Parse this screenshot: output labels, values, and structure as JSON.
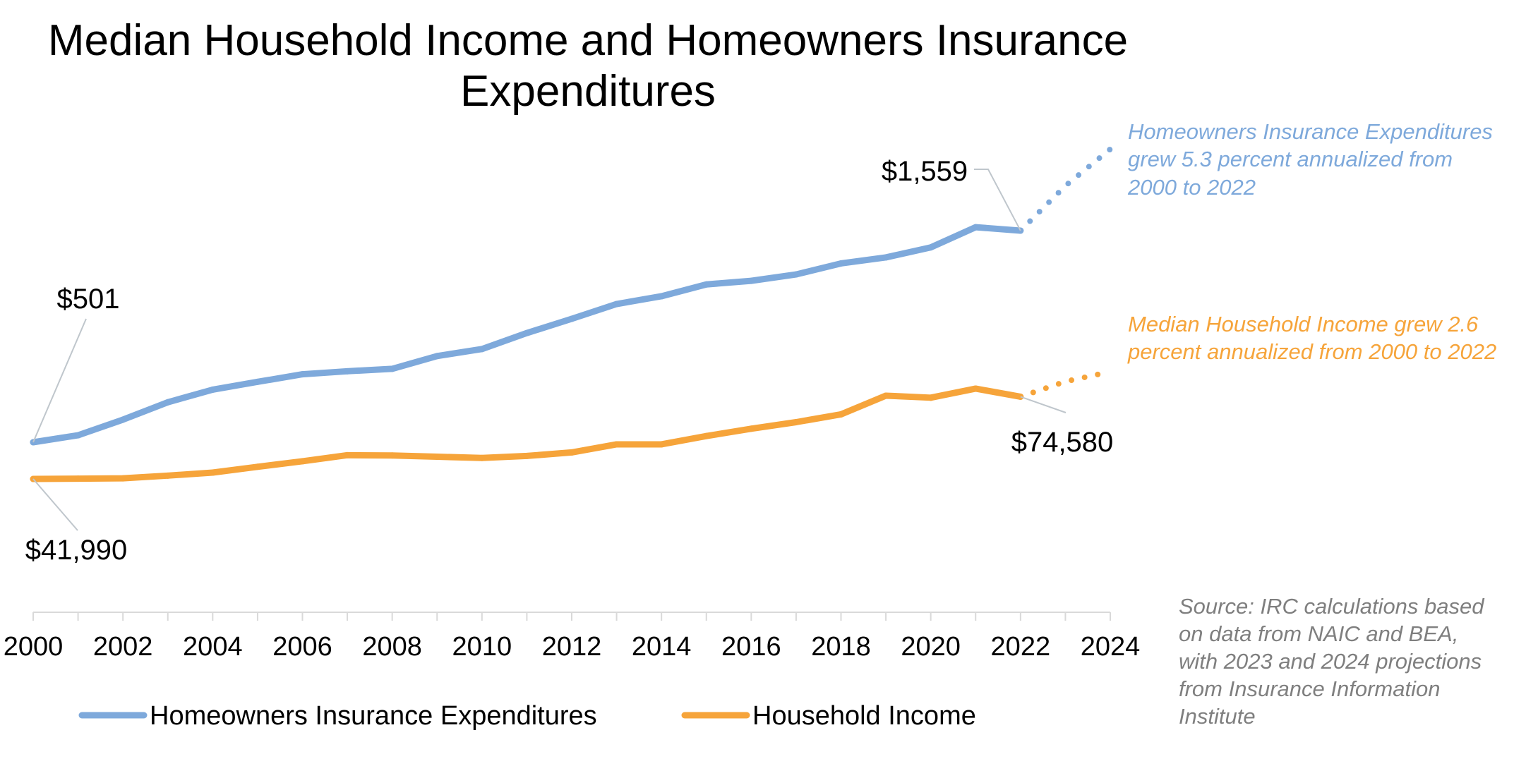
{
  "chart_data": {
    "type": "line",
    "title": [
      "Median Household Income and Homeowners Insurance",
      "Expenditures"
    ],
    "x": [
      2000,
      2001,
      2002,
      2003,
      2004,
      2005,
      2006,
      2007,
      2008,
      2009,
      2010,
      2011,
      2012,
      2013,
      2014,
      2015,
      2016,
      2017,
      2018,
      2019,
      2020,
      2021,
      2022,
      2023,
      2024
    ],
    "xticks": [
      "2000",
      "2002",
      "2004",
      "2006",
      "2008",
      "2010",
      "2012",
      "2014",
      "2016",
      "2018",
      "2020",
      "2022",
      "2024"
    ],
    "xlabel": "",
    "ylabel": "",
    "series": [
      {
        "name": "Homeowners Insurance Expenditures",
        "color": "#7EA9DB",
        "actual": [
          501,
          536,
          614,
          701,
          764,
          803,
          841,
          856,
          868,
          932,
          967,
          1047,
          1118,
          1192,
          1231,
          1290,
          1308,
          1340,
          1395,
          1425,
          1475,
          1576,
          1559
        ],
        "projected_x": [
          2022,
          2023,
          2024
        ],
        "projected": [
          1559,
          1783,
          1966
        ],
        "start_label": "$501",
        "end_label": "$1,559"
      },
      {
        "name": "Household Income",
        "color": "#F6A43A",
        "actual": [
          41990,
          42100,
          42230,
          43300,
          44500,
          46800,
          49000,
          51400,
          51300,
          50800,
          50300,
          51100,
          52500,
          55700,
          55700,
          59000,
          61900,
          64500,
          67600,
          75000,
          74200,
          77800,
          74580
        ],
        "projected_x": [
          2022,
          2023,
          2024
        ],
        "projected": [
          74580,
          80600,
          84500
        ],
        "start_label": "$41,990",
        "end_label": "$74,580"
      }
    ],
    "annotations": [
      {
        "lines": [
          "Homeowners Insurance Expenditures",
          "grew 5.3 percent annualized from",
          "2000 to 2022"
        ],
        "color": "#7EA9DB"
      },
      {
        "lines": [
          "Median Household Income grew 2.6",
          "percent annualized from 2000 to 2022"
        ],
        "color": "#F6A43A"
      }
    ],
    "source": [
      "Source: IRC calculations based",
      "on data from NAIC and BEA,",
      "with 2023 and 2024 projections",
      "from Insurance Information",
      "Institute"
    ],
    "source_color": "#7F7F7F",
    "legend": [
      "Homeowners Insurance Expenditures",
      "Household Income"
    ],
    "legend_position": "bottom"
  }
}
